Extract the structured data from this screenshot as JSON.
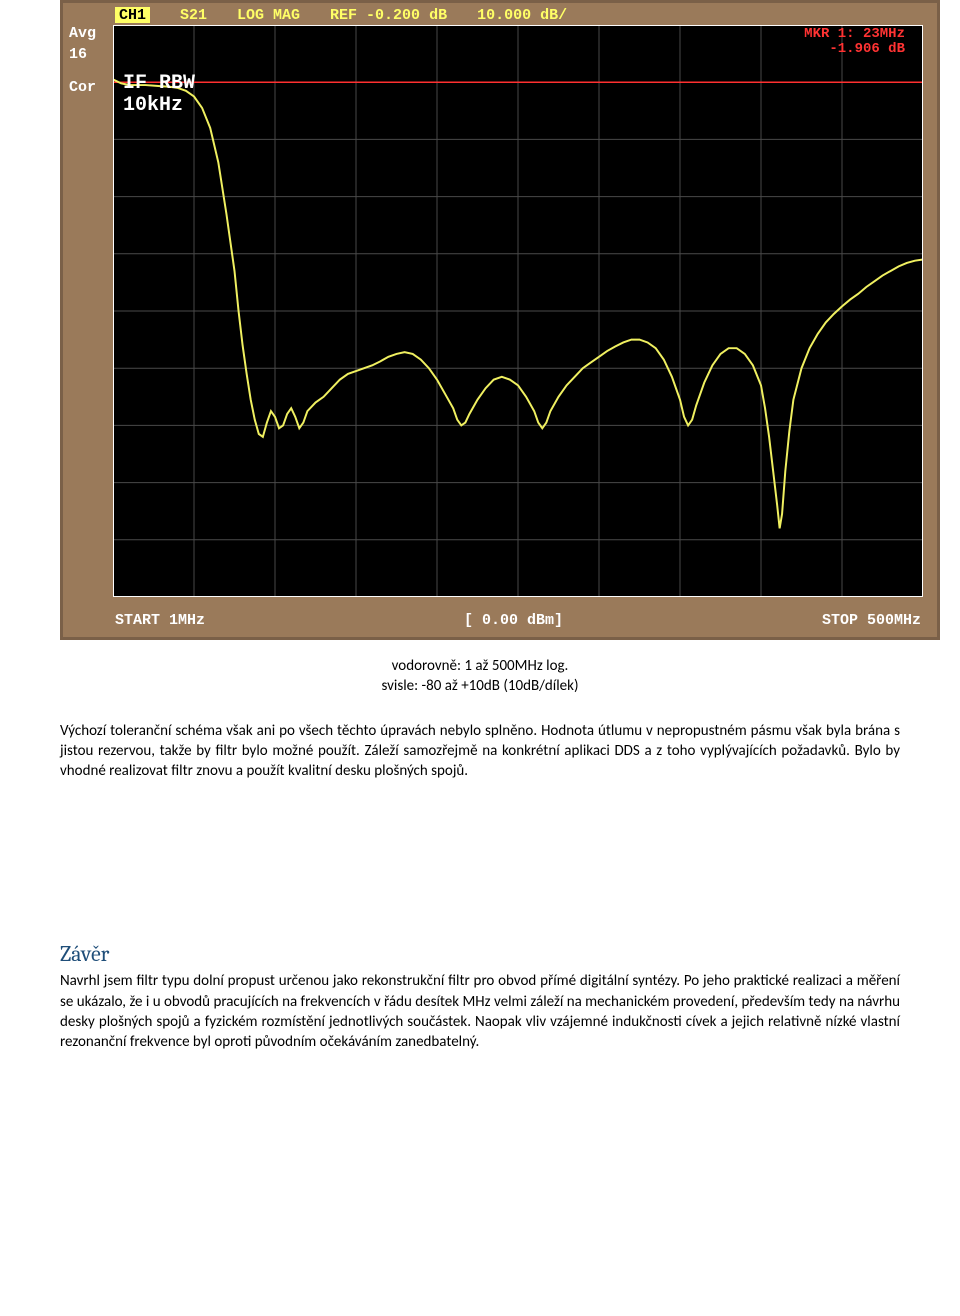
{
  "analyzer": {
    "frame_color": "#9a7a5a",
    "screen_bg": "#000000",
    "grid_color": "#4a4a4a",
    "trace_color": "#f0f060",
    "ref_line_color": "#ff3030",
    "text_color": "#ffffff",
    "topbar": {
      "ch": "CH1",
      "param": "S21",
      "format": "LOG MAG",
      "ref": "REF -0.200 dB",
      "scale": "10.000 dB/"
    },
    "marker": {
      "line1": "MKR  1:         23MHz",
      "line2": "-1.906 dB"
    },
    "if_label1": "IF RBW",
    "if_label2": "10kHz",
    "sidebar": {
      "avg": "Avg",
      "avg_n": "16",
      "cor": "Cor"
    },
    "bottom": {
      "start": "START  1MHz",
      "power": "[ 0.00 dBm]",
      "stop": "STOP  500MHz"
    },
    "grid": {
      "cols": 10,
      "rows": 10
    },
    "ref_line_row": 1,
    "trace_points": [
      [
        0.0,
        0.95
      ],
      [
        0.01,
        1.02
      ],
      [
        0.02,
        1.05
      ],
      [
        0.03,
        1.05
      ],
      [
        0.04,
        1.05
      ],
      [
        0.05,
        1.06
      ],
      [
        0.06,
        1.07
      ],
      [
        0.07,
        1.08
      ],
      [
        0.08,
        1.1
      ],
      [
        0.09,
        1.15
      ],
      [
        0.1,
        1.25
      ],
      [
        0.11,
        1.45
      ],
      [
        0.12,
        1.8
      ],
      [
        0.13,
        2.4
      ],
      [
        0.14,
        3.3
      ],
      [
        0.15,
        4.3
      ],
      [
        0.155,
        5.0
      ],
      [
        0.16,
        5.6
      ],
      [
        0.165,
        6.1
      ],
      [
        0.17,
        6.55
      ],
      [
        0.175,
        6.9
      ],
      [
        0.18,
        7.15
      ],
      [
        0.185,
        7.2
      ],
      [
        0.19,
        6.95
      ],
      [
        0.195,
        6.75
      ],
      [
        0.2,
        6.85
      ],
      [
        0.205,
        7.05
      ],
      [
        0.21,
        7.0
      ],
      [
        0.215,
        6.8
      ],
      [
        0.22,
        6.7
      ],
      [
        0.225,
        6.85
      ],
      [
        0.23,
        7.05
      ],
      [
        0.235,
        6.95
      ],
      [
        0.24,
        6.75
      ],
      [
        0.25,
        6.6
      ],
      [
        0.26,
        6.5
      ],
      [
        0.27,
        6.35
      ],
      [
        0.28,
        6.2
      ],
      [
        0.29,
        6.1
      ],
      [
        0.3,
        6.05
      ],
      [
        0.31,
        6.0
      ],
      [
        0.32,
        5.95
      ],
      [
        0.33,
        5.88
      ],
      [
        0.34,
        5.8
      ],
      [
        0.35,
        5.75
      ],
      [
        0.36,
        5.72
      ],
      [
        0.37,
        5.75
      ],
      [
        0.38,
        5.85
      ],
      [
        0.39,
        6.0
      ],
      [
        0.4,
        6.2
      ],
      [
        0.41,
        6.45
      ],
      [
        0.42,
        6.7
      ],
      [
        0.425,
        6.9
      ],
      [
        0.43,
        7.0
      ],
      [
        0.435,
        6.95
      ],
      [
        0.44,
        6.8
      ],
      [
        0.45,
        6.55
      ],
      [
        0.46,
        6.35
      ],
      [
        0.47,
        6.2
      ],
      [
        0.48,
        6.15
      ],
      [
        0.49,
        6.2
      ],
      [
        0.5,
        6.3
      ],
      [
        0.51,
        6.5
      ],
      [
        0.52,
        6.75
      ],
      [
        0.525,
        6.95
      ],
      [
        0.53,
        7.05
      ],
      [
        0.535,
        6.95
      ],
      [
        0.54,
        6.75
      ],
      [
        0.55,
        6.5
      ],
      [
        0.56,
        6.3
      ],
      [
        0.57,
        6.15
      ],
      [
        0.58,
        6.0
      ],
      [
        0.59,
        5.9
      ],
      [
        0.6,
        5.8
      ],
      [
        0.61,
        5.7
      ],
      [
        0.62,
        5.62
      ],
      [
        0.63,
        5.55
      ],
      [
        0.64,
        5.5
      ],
      [
        0.65,
        5.5
      ],
      [
        0.66,
        5.55
      ],
      [
        0.67,
        5.65
      ],
      [
        0.68,
        5.85
      ],
      [
        0.69,
        6.15
      ],
      [
        0.7,
        6.55
      ],
      [
        0.705,
        6.85
      ],
      [
        0.71,
        7.0
      ],
      [
        0.715,
        6.9
      ],
      [
        0.72,
        6.65
      ],
      [
        0.73,
        6.25
      ],
      [
        0.74,
        5.95
      ],
      [
        0.75,
        5.75
      ],
      [
        0.76,
        5.65
      ],
      [
        0.77,
        5.65
      ],
      [
        0.78,
        5.75
      ],
      [
        0.79,
        5.95
      ],
      [
        0.8,
        6.3
      ],
      [
        0.805,
        6.7
      ],
      [
        0.81,
        7.2
      ],
      [
        0.815,
        7.8
      ],
      [
        0.82,
        8.4
      ],
      [
        0.823,
        8.8
      ],
      [
        0.826,
        8.55
      ],
      [
        0.83,
        7.8
      ],
      [
        0.835,
        7.1
      ],
      [
        0.84,
        6.55
      ],
      [
        0.85,
        6.0
      ],
      [
        0.86,
        5.65
      ],
      [
        0.87,
        5.4
      ],
      [
        0.88,
        5.2
      ],
      [
        0.89,
        5.05
      ],
      [
        0.9,
        4.92
      ],
      [
        0.91,
        4.8
      ],
      [
        0.92,
        4.7
      ],
      [
        0.93,
        4.58
      ],
      [
        0.94,
        4.48
      ],
      [
        0.95,
        4.38
      ],
      [
        0.96,
        4.3
      ],
      [
        0.97,
        4.22
      ],
      [
        0.98,
        4.16
      ],
      [
        0.99,
        4.12
      ],
      [
        1.0,
        4.1
      ]
    ]
  },
  "caption": {
    "line1": "vodorovně:  1 až 500MHz log.",
    "line2": "svisle: -80 až +10dB (10dB/dílek)"
  },
  "para1": "Výchozí toleranční schéma však ani po všech těchto úpravách nebylo splněno. Hodnota útlumu v nepropustném pásmu však byla brána s jistou rezervou, takže by filtr bylo možné použít. Záleží samozřejmě na konkrétní aplikaci DDS a z toho vyplývajících požadavků. Bylo by vhodné realizovat filtr znovu a použít kvalitní desku plošných spojů.",
  "zaver_heading": "Závěr",
  "para2": "Navrhl jsem filtr typu dolní propust určenou jako rekonstrukční filtr pro obvod přímé digitální syntézy. Po jeho praktické realizaci a měření se ukázalo, že i u obvodů pracujících na frekvencích v řádu desítek MHz velmi záleží na mechanickém provedení, především tedy na návrhu desky plošných spojů a fyzickém rozmístění jednotlivých součástek. Naopak vliv vzájemné indukčnosti cívek a jejich relativně nízké vlastní rezonanční frekvence byl oproti původním očekáváním zanedbatelný."
}
